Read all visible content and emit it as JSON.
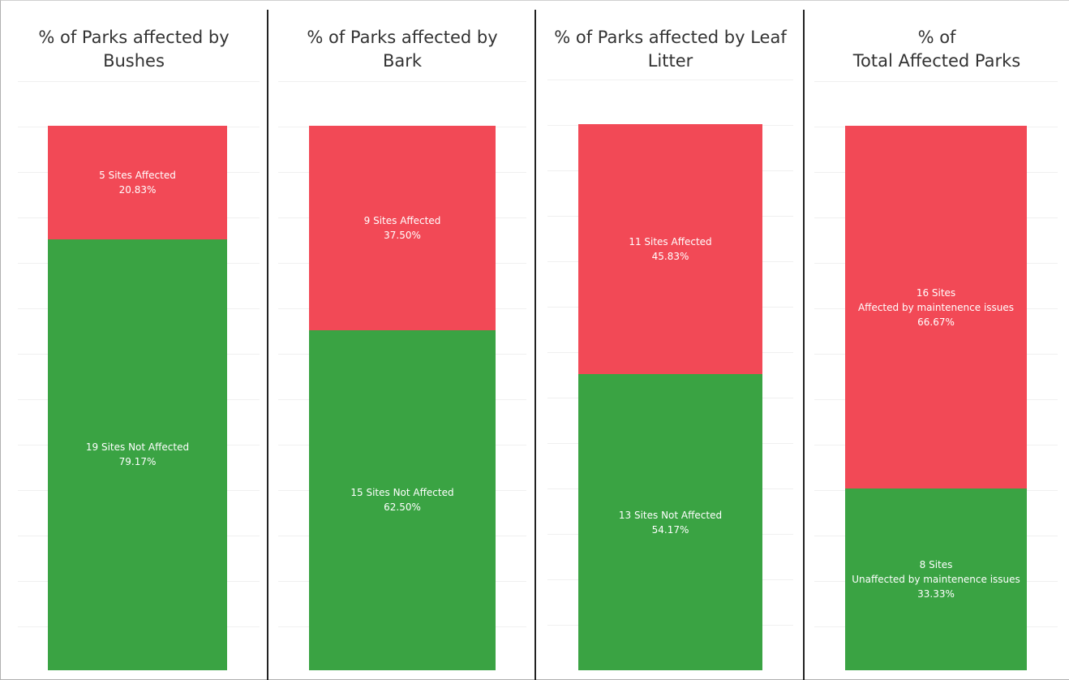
{
  "colors": {
    "affected": "#f24956",
    "not_affected": "#3aa343"
  },
  "chart_data": [
    {
      "type": "bar",
      "title": [
        "% of Parks affected by",
        "Bushes"
      ],
      "categories": [
        ""
      ],
      "ylim": [
        0,
        24
      ],
      "grid": true,
      "series": [
        {
          "name": "Not Affected",
          "values": [
            19
          ],
          "label": [
            "19 Sites Not Affected",
            "79.17%"
          ]
        },
        {
          "name": "Affected",
          "values": [
            5
          ],
          "label": [
            "5 Sites Affected",
            "20.83%"
          ]
        }
      ]
    },
    {
      "type": "bar",
      "title": [
        "% of Parks affected by",
        "Bark"
      ],
      "categories": [
        ""
      ],
      "ylim": [
        0,
        24
      ],
      "grid": true,
      "series": [
        {
          "name": "Not Affected",
          "values": [
            15
          ],
          "label": [
            "15 Sites Not Affected",
            "62.50%"
          ]
        },
        {
          "name": "Affected",
          "values": [
            9
          ],
          "label": [
            "9 Sites Affected",
            "37.50%"
          ]
        }
      ]
    },
    {
      "type": "bar",
      "title": [
        "% of Parks affected by Leaf",
        "Litter"
      ],
      "categories": [
        ""
      ],
      "ylim": [
        0,
        24
      ],
      "grid": true,
      "series": [
        {
          "name": "Not Affected",
          "values": [
            13
          ],
          "label": [
            "13 Sites Not Affected",
            "54.17%"
          ]
        },
        {
          "name": "Affected",
          "values": [
            11
          ],
          "label": [
            "11 Sites Affected",
            "45.83%"
          ]
        }
      ]
    },
    {
      "type": "bar",
      "title": [
        "% of",
        "Total Affected Parks"
      ],
      "categories": [
        ""
      ],
      "ylim": [
        0,
        24
      ],
      "grid": true,
      "series": [
        {
          "name": "Unaffected by maintenence issues",
          "values": [
            8
          ],
          "label": [
            "8 Sites",
            "Unaffected by maintenence issues",
            "33.33%"
          ]
        },
        {
          "name": "Affected by maintenence issues",
          "values": [
            16
          ],
          "label": [
            "16 Sites",
            "Affected by maintenence issues",
            "66.67%"
          ]
        }
      ]
    }
  ]
}
